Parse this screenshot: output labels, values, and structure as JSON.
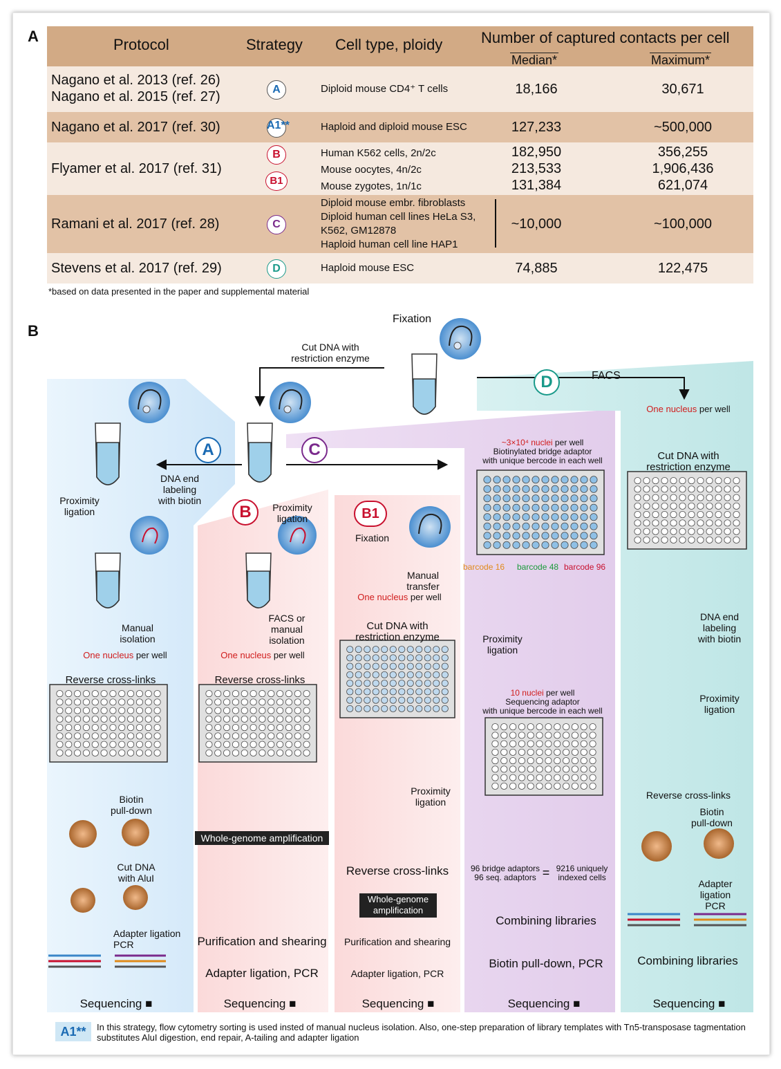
{
  "panels": {
    "a": "A",
    "b": "B"
  },
  "table": {
    "headers": {
      "protocol": "Protocol",
      "strategy": "Strategy",
      "cell_type": "Cell type, ploidy",
      "contacts": "Number of captured contacts per cell",
      "median": "Median*",
      "maximum": "Maximum*"
    },
    "rows": [
      {
        "protocol": [
          "Nagano et al. 2013 (ref. 26)",
          "Nagano et al. 2015 (ref. 27)"
        ],
        "strategy": "A",
        "cells": [
          "Diploid mouse CD4⁺ T cells"
        ],
        "median": [
          "18,166"
        ],
        "maximum": [
          "30,671"
        ]
      },
      {
        "protocol": [
          "Nagano et al. 2017 (ref. 30)"
        ],
        "strategy": "A1**",
        "cells": [
          "Haploid and diploid mouse ESC"
        ],
        "median": [
          "127,233"
        ],
        "maximum": [
          "~500,000"
        ]
      },
      {
        "protocol": [
          "Flyamer et al. 2017 (ref. 31)"
        ],
        "strategy": "B",
        "strategy2": "B1",
        "cells": [
          "Human K562 cells, 2n/2c",
          "Mouse oocytes, 4n/2c",
          "Mouse zygotes, 1n/1c"
        ],
        "median": [
          "182,950",
          "213,533",
          "131,384"
        ],
        "maximum": [
          "356,255",
          "1,906,436",
          "621,074"
        ]
      },
      {
        "protocol": [
          "Ramani et al. 2017 (ref. 28)"
        ],
        "strategy": "C",
        "cells": [
          "Diploid mouse embr. fibroblasts",
          "Diploid human cell lines HeLa S3,",
          "K562, GM12878",
          "Haploid human cell line HAP1"
        ],
        "median": [
          "~10,000"
        ],
        "maximum": [
          "~100,000"
        ]
      },
      {
        "protocol": [
          "Stevens et al. 2017 (ref. 29)"
        ],
        "strategy": "D",
        "cells": [
          "Haploid mouse ESC"
        ],
        "median": [
          "74,885"
        ],
        "maximum": [
          "122,475"
        ]
      }
    ],
    "footnote": "*based on data presented in the paper and supplemental material"
  },
  "colors": {
    "A": "#1a6ab3",
    "B": "#c8102e",
    "C": "#7a2a8c",
    "D": "#1a9a8a"
  },
  "top": {
    "fixation": "Fixation",
    "cut_dna": [
      "Cut DNA with",
      "restriction enzyme"
    ],
    "facs": "FACS"
  },
  "col_a": {
    "letter": "A",
    "dna_end": [
      "DNA end",
      "labeling",
      "with biotin"
    ],
    "proximity": [
      "Proximity",
      "ligation"
    ],
    "manual": [
      "Manual",
      "isolation"
    ],
    "one_nucleus": "One nucleus",
    "per_well": " per well",
    "reverse": "Reverse cross-links",
    "biotin": [
      "Biotin",
      "pull-down"
    ],
    "cut_alui": [
      "Cut DNA",
      "with AluI"
    ],
    "adapter": [
      "Adapter ligation",
      "PCR"
    ],
    "sequencing": "Sequencing ■"
  },
  "col_b": {
    "letter": "B",
    "proximity": [
      "Proximity",
      "ligation"
    ],
    "facs": [
      "FACS or",
      "manual",
      "isolation"
    ],
    "one_nucleus": "One nucleus",
    "per_well": " per well",
    "reverse": "Reverse cross-links",
    "wga": "Whole-genome amplification",
    "purification": "Purification and shearing",
    "adapter": "Adapter ligation, PCR",
    "sequencing": "Sequencing ■"
  },
  "col_b1": {
    "letter": "B1",
    "fixation": "Fixation",
    "manual": [
      "Manual",
      "transfer"
    ],
    "one_nucleus": "One nucleus",
    "per_well": " per well",
    "cut": [
      "Cut DNA with",
      "restriction enzyme"
    ],
    "proximity": [
      "Proximity",
      "ligation"
    ],
    "reverse": "Reverse cross-links",
    "wga": [
      "Whole-genome",
      "amplification"
    ],
    "purification": "Purification and shearing",
    "adapter": "Adapter ligation, PCR",
    "sequencing": "Sequencing ■"
  },
  "col_c": {
    "letter": "C",
    "nuclei_red": "~3×10⁴ nuclei",
    "nuclei_rest": " per well",
    "bridge": [
      "Biotinylated bridge adaptor",
      "with unique bercode in each well"
    ],
    "bc16": "barcode 16",
    "bc48": "barcode 48",
    "bc96": "barcode 96",
    "proximity": [
      "Proximity",
      "ligation"
    ],
    "ten_red": "10 nuclei",
    "ten_rest": " per well",
    "seq_adaptor": [
      "Sequencing adaptor",
      "with unique bercode in each well"
    ],
    "eq_left": [
      "96 bridge adaptors",
      "96 seq. adaptors"
    ],
    "eq_sign": "=",
    "eq_right": [
      "9216 uniquely",
      "indexed cells"
    ],
    "combining": "Combining libraries",
    "biotin": "Biotin pull-down, PCR",
    "sequencing": "Sequencing ■"
  },
  "col_d": {
    "letter": "D",
    "one_nucleus": "One nucleus",
    "per_well": " per well",
    "cut": [
      "Cut DNA with",
      "restriction enzyme"
    ],
    "dna_end": [
      "DNA end",
      "labeling",
      "with biotin"
    ],
    "proximity": [
      "Proximity",
      "ligation"
    ],
    "reverse": "Reverse cross-links",
    "biotin": [
      "Biotin",
      "pull-down"
    ],
    "adapter": [
      "Adapter",
      "ligation",
      "PCR"
    ],
    "combining": "Combining libraries",
    "sequencing": "Sequencing ■"
  },
  "note": {
    "tag": "A1**",
    "text": "In this strategy, flow cytometry sorting is used insted of manual nucleus isolation. Also, one-step preparation of library templates with Tn5-transposase tagmentation substitutes AluI digestion, end repair, A-tailing and adapter ligation"
  }
}
